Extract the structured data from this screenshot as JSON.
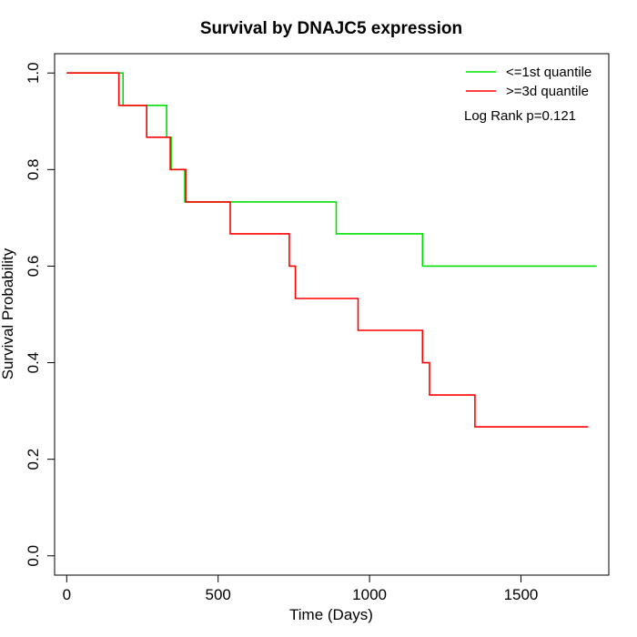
{
  "chart_data": {
    "type": "line",
    "title": "Survival by DNAJC5 expression",
    "xlabel": "Time (Days)",
    "ylabel": "Survival Probability",
    "xlim": [
      -40,
      1790
    ],
    "ylim": [
      -0.04,
      1.04
    ],
    "xticks": [
      0,
      500,
      1000,
      1500
    ],
    "yticks": [
      0.0,
      0.2,
      0.4,
      0.6,
      0.8,
      1.0
    ],
    "xtick_labels": [
      "0",
      "500",
      "1000",
      "1500"
    ],
    "ytick_labels": [
      "0.0",
      "0.2",
      "0.4",
      "0.6",
      "0.8",
      "1.0"
    ],
    "grid": false,
    "legend_position": "top-right",
    "annotation": "Log Rank p=0.121",
    "series": [
      {
        "name": "<=1st quantile",
        "color": "#00e000",
        "step": true,
        "x": [
          0,
          186,
          186,
          330,
          330,
          345,
          345,
          390,
          390,
          890,
          890,
          1175,
          1175,
          1750
        ],
        "y": [
          1.0,
          1.0,
          0.933,
          0.933,
          0.867,
          0.867,
          0.8,
          0.8,
          0.733,
          0.733,
          0.667,
          0.667,
          0.6,
          0.6
        ]
      },
      {
        "name": ">=3d quantile",
        "color": "#ff0000",
        "step": true,
        "x": [
          0,
          172,
          172,
          264,
          264,
          342,
          342,
          393,
          393,
          540,
          540,
          735,
          735,
          755,
          755,
          962,
          962,
          1175,
          1175,
          1198,
          1198,
          1348,
          1348,
          1722
        ],
        "y": [
          1.0,
          1.0,
          0.933,
          0.933,
          0.867,
          0.867,
          0.8,
          0.8,
          0.733,
          0.733,
          0.667,
          0.667,
          0.6,
          0.6,
          0.533,
          0.533,
          0.467,
          0.467,
          0.4,
          0.4,
          0.333,
          0.333,
          0.267,
          0.267
        ]
      }
    ]
  }
}
